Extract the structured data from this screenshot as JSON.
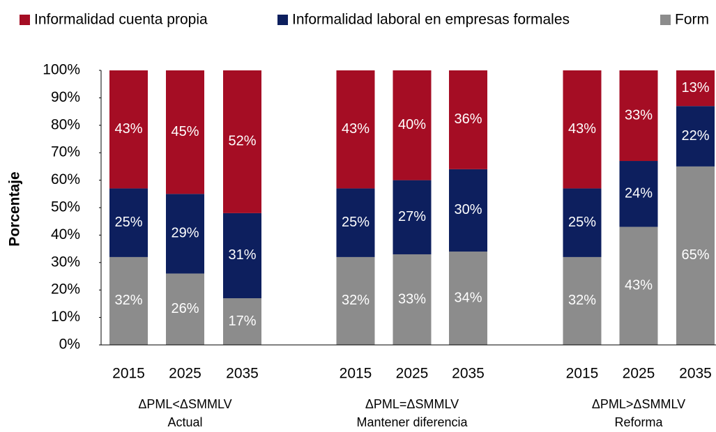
{
  "chart_data": {
    "type": "stacked_bar",
    "y_label": "Porcentaje",
    "categories": [
      "2015",
      "2025",
      "2035",
      "2015",
      "2025",
      "2035",
      "2015",
      "2025",
      "2035"
    ],
    "groups": [
      {
        "label": "ΔPML<ΔSMMLV",
        "sublabel": "Actual"
      },
      {
        "label": "ΔPML=ΔSMMLV",
        "sublabel": "Mantener diferencia"
      },
      {
        "label": "ΔPML>ΔSMMLV",
        "sublabel": "Reforma"
      }
    ],
    "series": [
      {
        "name": "Form",
        "color": "#8c8c8c",
        "values": [
          32,
          26,
          17,
          32,
          33,
          34,
          32,
          43,
          65
        ],
        "value_labels": [
          "32%",
          "26%",
          "17%",
          "32%",
          "33%",
          "34%",
          "32%",
          "43%",
          "65%"
        ]
      },
      {
        "name": "Informalidad laboral en empresas formales",
        "color": "#0d1f5e",
        "values": [
          25,
          29,
          31,
          25,
          27,
          30,
          25,
          24,
          22
        ],
        "value_labels": [
          "25%",
          "29%",
          "31%",
          "25%",
          "27%",
          "30%",
          "25%",
          "24%",
          "22%"
        ]
      },
      {
        "name": "Informalidad cuenta propia",
        "color": "#a50d24",
        "values": [
          43,
          45,
          52,
          43,
          40,
          36,
          43,
          33,
          13
        ],
        "value_labels": [
          "43%",
          "45%",
          "52%",
          "43%",
          "40%",
          "36%",
          "43%",
          "33%",
          "13%"
        ]
      }
    ],
    "ylim": [
      0,
      100
    ],
    "yticks": [
      {
        "value": 0,
        "label": "0%"
      },
      {
        "value": 10,
        "label": "10%"
      },
      {
        "value": 20,
        "label": "20%"
      },
      {
        "value": 30,
        "label": "30%"
      },
      {
        "value": 40,
        "label": "40%"
      },
      {
        "value": 50,
        "label": "50%"
      },
      {
        "value": 60,
        "label": "60%"
      },
      {
        "value": 70,
        "label": "70%"
      },
      {
        "value": 80,
        "label": "80%"
      },
      {
        "value": 90,
        "label": "90%"
      },
      {
        "value": 100,
        "label": "100%"
      }
    ],
    "legend": "top"
  }
}
